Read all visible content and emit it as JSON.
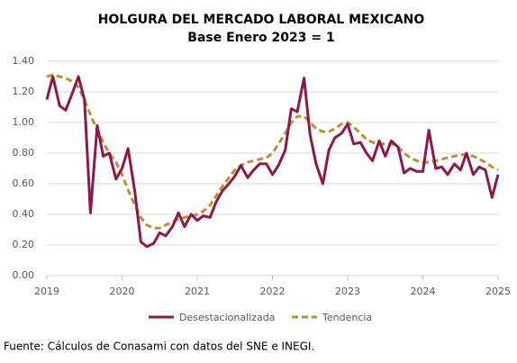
{
  "chart_data": {
    "type": "line",
    "title": "HOLGURA DEL MERCADO LABORAL MEXICANO",
    "subtitle": "Base Enero 2023 = 1",
    "source": "Fuente: Cálculos de Conasami con datos del SNE e INEGI.",
    "x": [
      2019,
      2019.08,
      2019.17,
      2019.25,
      2019.33,
      2019.42,
      2019.5,
      2019.58,
      2019.67,
      2019.75,
      2019.83,
      2019.92,
      2020,
      2020.08,
      2020.17,
      2020.25,
      2020.33,
      2020.42,
      2020.5,
      2020.58,
      2020.67,
      2020.75,
      2020.83,
      2020.92,
      2021,
      2021.08,
      2021.17,
      2021.25,
      2021.33,
      2021.42,
      2021.5,
      2021.58,
      2021.67,
      2021.75,
      2021.83,
      2021.92,
      2022,
      2022.08,
      2022.17,
      2022.25,
      2022.33,
      2022.42,
      2022.5,
      2022.58,
      2022.67,
      2022.75,
      2022.83,
      2022.92,
      2023,
      2023.08,
      2023.17,
      2023.25,
      2023.33,
      2023.42,
      2023.5,
      2023.58,
      2023.67,
      2023.75,
      2023.83,
      2023.92,
      2024,
      2024.08,
      2024.17,
      2024.25,
      2024.33,
      2024.42,
      2024.5,
      2024.58,
      2024.67,
      2024.75,
      2024.83,
      2024.92,
      2025
    ],
    "series": [
      {
        "name": "Desestacionalizada",
        "color": "#8b1a4a",
        "dashed": false,
        "values": [
          1.15,
          1.3,
          1.11,
          1.08,
          1.18,
          1.3,
          1.15,
          0.41,
          0.98,
          0.78,
          0.8,
          0.63,
          0.7,
          0.83,
          0.55,
          0.22,
          0.19,
          0.21,
          0.28,
          0.26,
          0.32,
          0.41,
          0.32,
          0.4,
          0.36,
          0.39,
          0.38,
          0.48,
          0.55,
          0.6,
          0.65,
          0.72,
          0.64,
          0.69,
          0.73,
          0.73,
          0.66,
          0.72,
          0.82,
          1.09,
          1.07,
          1.29,
          0.92,
          0.73,
          0.6,
          0.82,
          0.9,
          0.93,
          0.99,
          0.86,
          0.87,
          0.8,
          0.75,
          0.88,
          0.78,
          0.88,
          0.84,
          0.67,
          0.7,
          0.68,
          0.68,
          0.95,
          0.7,
          0.71,
          0.66,
          0.73,
          0.69,
          0.8,
          0.66,
          0.71,
          0.69,
          0.51,
          0.66
        ]
      },
      {
        "name": "Tendencia",
        "color": "#b8913a",
        "dashed": true,
        "values": [
          1.3,
          1.31,
          1.3,
          1.29,
          1.27,
          1.23,
          1.15,
          1.05,
          0.95,
          0.87,
          0.8,
          0.74,
          0.66,
          0.56,
          0.46,
          0.38,
          0.33,
          0.31,
          0.31,
          0.33,
          0.35,
          0.37,
          0.38,
          0.39,
          0.4,
          0.42,
          0.46,
          0.52,
          0.58,
          0.64,
          0.69,
          0.72,
          0.74,
          0.75,
          0.76,
          0.77,
          0.8,
          0.86,
          0.93,
          1.0,
          1.04,
          1.04,
          1.0,
          0.96,
          0.94,
          0.94,
          0.96,
          0.99,
          1.0,
          0.97,
          0.93,
          0.89,
          0.87,
          0.86,
          0.86,
          0.86,
          0.84,
          0.8,
          0.77,
          0.75,
          0.74,
          0.74,
          0.75,
          0.76,
          0.77,
          0.78,
          0.79,
          0.79,
          0.78,
          0.76,
          0.74,
          0.71,
          0.69
        ]
      }
    ],
    "xlim": [
      2019,
      2025
    ],
    "xticks": [
      2019,
      2020,
      2021,
      2022,
      2023,
      2024,
      2025
    ],
    "ylim": [
      0,
      1.4
    ],
    "yticks": [
      {
        "value": 0,
        "label": "0.00"
      },
      {
        "value": 0.2,
        "label": "0.20"
      },
      {
        "value": 0.4,
        "label": "0.40"
      },
      {
        "value": 0.6,
        "label": "0.60"
      },
      {
        "value": 0.8,
        "label": "0.80"
      },
      {
        "value": 1.0,
        "label": "1.00"
      },
      {
        "value": 1.2,
        "label": "1.20"
      },
      {
        "value": 1.4,
        "label": "1.40"
      }
    ],
    "grid": true,
    "legend": "bottom"
  }
}
